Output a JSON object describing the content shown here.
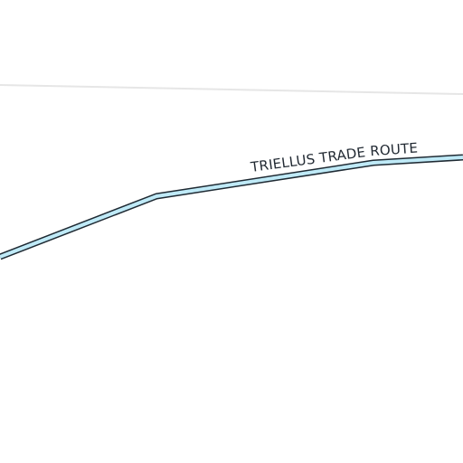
{
  "map": {
    "background_color": "#ffffff",
    "boundary_line": {
      "color": "#e6e6e6"
    },
    "trade_route": {
      "label": "TRIELLUS TRADE ROUTE",
      "casing_color": "#1f2a33",
      "fill_color": "#bfeaf7"
    }
  }
}
